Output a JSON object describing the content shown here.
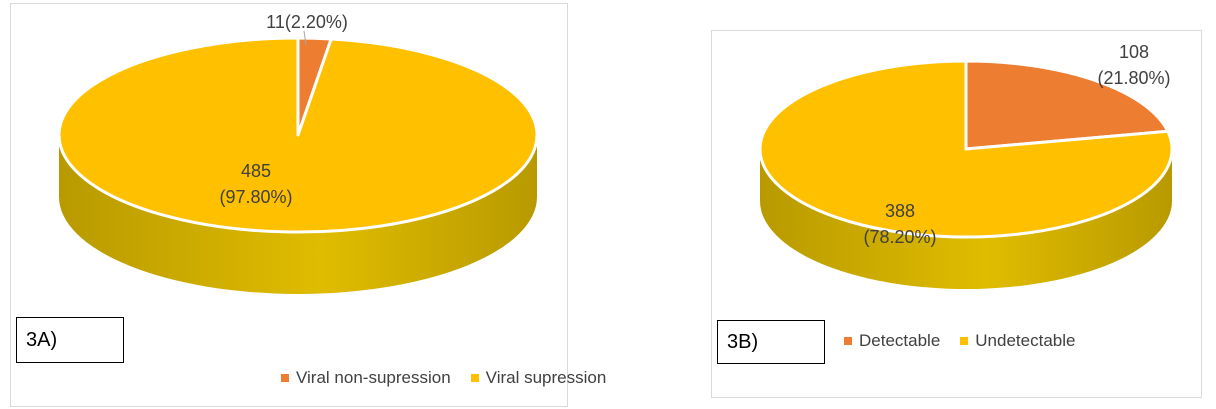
{
  "colors": {
    "orange": "#ED7D31",
    "yellow": "#FFC000",
    "yellow_side": "#B89A00",
    "yellow_side_light": "#E0BC00",
    "orange_side": "#B05A1E"
  },
  "chart_data": [
    {
      "type": "pie",
      "panel_label": "3A)",
      "categories": [
        "Viral non-supression",
        "Viral supression"
      ],
      "values": [
        11,
        485
      ],
      "percents": [
        "2.20%",
        "97.80%"
      ],
      "slice_labels": [
        [
          "11(2.20%)"
        ],
        [
          "485",
          "(97.80%)"
        ]
      ],
      "colors": [
        "#ED7D31",
        "#FFC000"
      ],
      "legend": "bottom",
      "legend_labels": [
        "Viral non-supression",
        "Viral supression"
      ]
    },
    {
      "type": "pie",
      "panel_label": "3B)",
      "categories": [
        "Detectable",
        "Undetectable"
      ],
      "values": [
        108,
        388
      ],
      "percents": [
        "21.80%",
        "78.20%"
      ],
      "slice_labels": [
        [
          "108",
          "(21.80%)"
        ],
        [
          "388",
          "(78.20%)"
        ]
      ],
      "colors": [
        "#ED7D31",
        "#FFC000"
      ],
      "legend": "bottom",
      "legend_labels": [
        "Detectable",
        "Undetectable"
      ]
    }
  ]
}
